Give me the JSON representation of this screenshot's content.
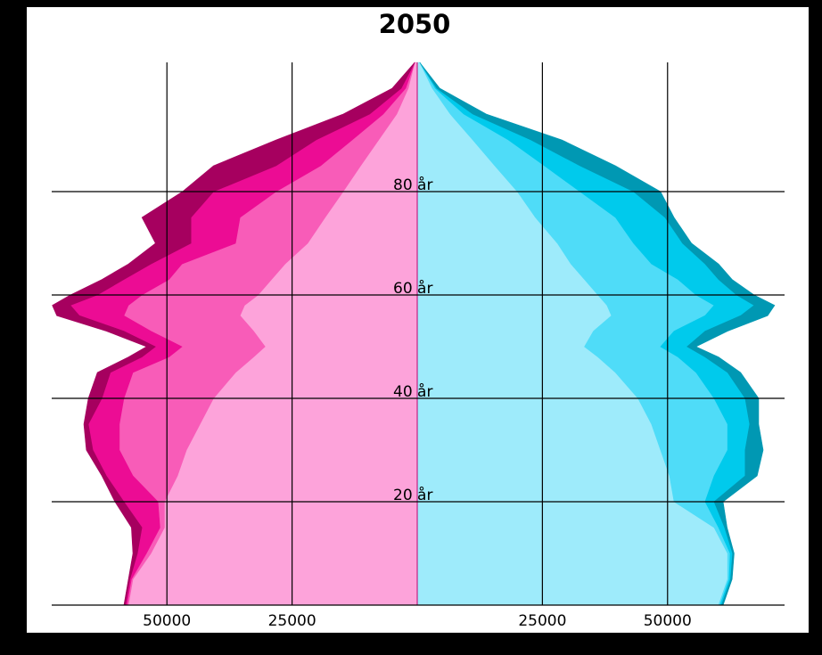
{
  "chart_data": {
    "type": "pyramid",
    "title": "2050",
    "y": [
      0,
      5,
      10,
      15,
      20,
      25,
      30,
      35,
      40,
      45,
      48,
      50,
      53,
      56,
      58,
      60,
      63,
      66,
      70,
      75,
      80,
      85,
      90,
      95,
      100,
      105
    ],
    "ylim": [
      0,
      105
    ],
    "yticks": [
      {
        "value": 20,
        "label": "20 år"
      },
      {
        "value": 40,
        "label": "40 år"
      },
      {
        "value": 60,
        "label": "60 år"
      },
      {
        "value": 80,
        "label": "80 år"
      }
    ],
    "xlim": [
      -78000,
      78000
    ],
    "xticks": [
      {
        "value": -50000,
        "label": "50000"
      },
      {
        "value": -25000,
        "label": "25000"
      },
      25000,
      50000
    ],
    "grid": true,
    "series": [
      {
        "side": "left",
        "color": "#fda3da",
        "values": [
          57700,
          56800,
          53200,
          50500,
          50500,
          47900,
          46100,
          43400,
          40700,
          36300,
          32700,
          30400,
          32700,
          35400,
          34500,
          31800,
          29100,
          26400,
          21900,
          18400,
          14800,
          11300,
          7700,
          4100,
          1800,
          500
        ]
      },
      {
        "side": "left",
        "color": "#f85cb8",
        "values": [
          300,
          300,
          900,
          900,
          1300,
          8900,
          13400,
          16100,
          17900,
          20500,
          16900,
          16600,
          20500,
          23200,
          23200,
          23200,
          20500,
          20600,
          14400,
          17000,
          13400,
          8000,
          5300,
          2700,
          500,
          0
        ]
      },
      {
        "side": "left",
        "color": "#ec0c94",
        "values": [
          300,
          300,
          1800,
          3600,
          6800,
          5300,
          5300,
          6200,
          4400,
          4500,
          5400,
          5300,
          5400,
          8900,
          11600,
          8900,
          9000,
          6200,
          8900,
          9800,
          12500,
          8900,
          7200,
          2700,
          900,
          0
        ]
      },
      {
        "side": "left",
        "color": "#a6005f",
        "values": [
          300,
          300,
          900,
          2100,
          1800,
          900,
          1300,
          900,
          2700,
          2600,
          2700,
          1800,
          3500,
          4500,
          3600,
          5400,
          4400,
          4500,
          7100,
          9800,
          6200,
          12500,
          8000,
          5300,
          1800,
          0
        ]
      },
      {
        "side": "right",
        "color": "#9eebfb",
        "values": [
          60200,
          62000,
          62000,
          59300,
          51300,
          50400,
          48600,
          46800,
          44100,
          39600,
          36100,
          33400,
          35200,
          38800,
          37900,
          36100,
          33400,
          30700,
          28000,
          23600,
          20000,
          15500,
          11100,
          6600,
          3000,
          500
        ]
      },
      {
        "side": "right",
        "color": "#4fdcf8",
        "values": [
          300,
          300,
          500,
          900,
          6200,
          8900,
          13400,
          15200,
          15200,
          16100,
          16000,
          15200,
          16100,
          18700,
          21400,
          19600,
          18700,
          16100,
          15200,
          16000,
          12500,
          9900,
          7100,
          2700,
          600,
          0
        ]
      },
      {
        "side": "right",
        "color": "#00caec",
        "values": [
          300,
          300,
          500,
          1200,
          1800,
          6200,
          3500,
          4400,
          6200,
          6300,
          5400,
          5300,
          6200,
          7100,
          8000,
          8100,
          8100,
          10700,
          9800,
          9900,
          10700,
          7100,
          4500,
          1800,
          300,
          0
        ]
      },
      {
        "side": "right",
        "color": "#0098b3",
        "values": [
          300,
          300,
          300,
          500,
          1800,
          2400,
          3600,
          1800,
          2700,
          2600,
          2700,
          1800,
          4500,
          5400,
          4100,
          3500,
          2700,
          2700,
          1800,
          1800,
          5400,
          7100,
          6200,
          2700,
          600,
          0
        ]
      }
    ]
  }
}
